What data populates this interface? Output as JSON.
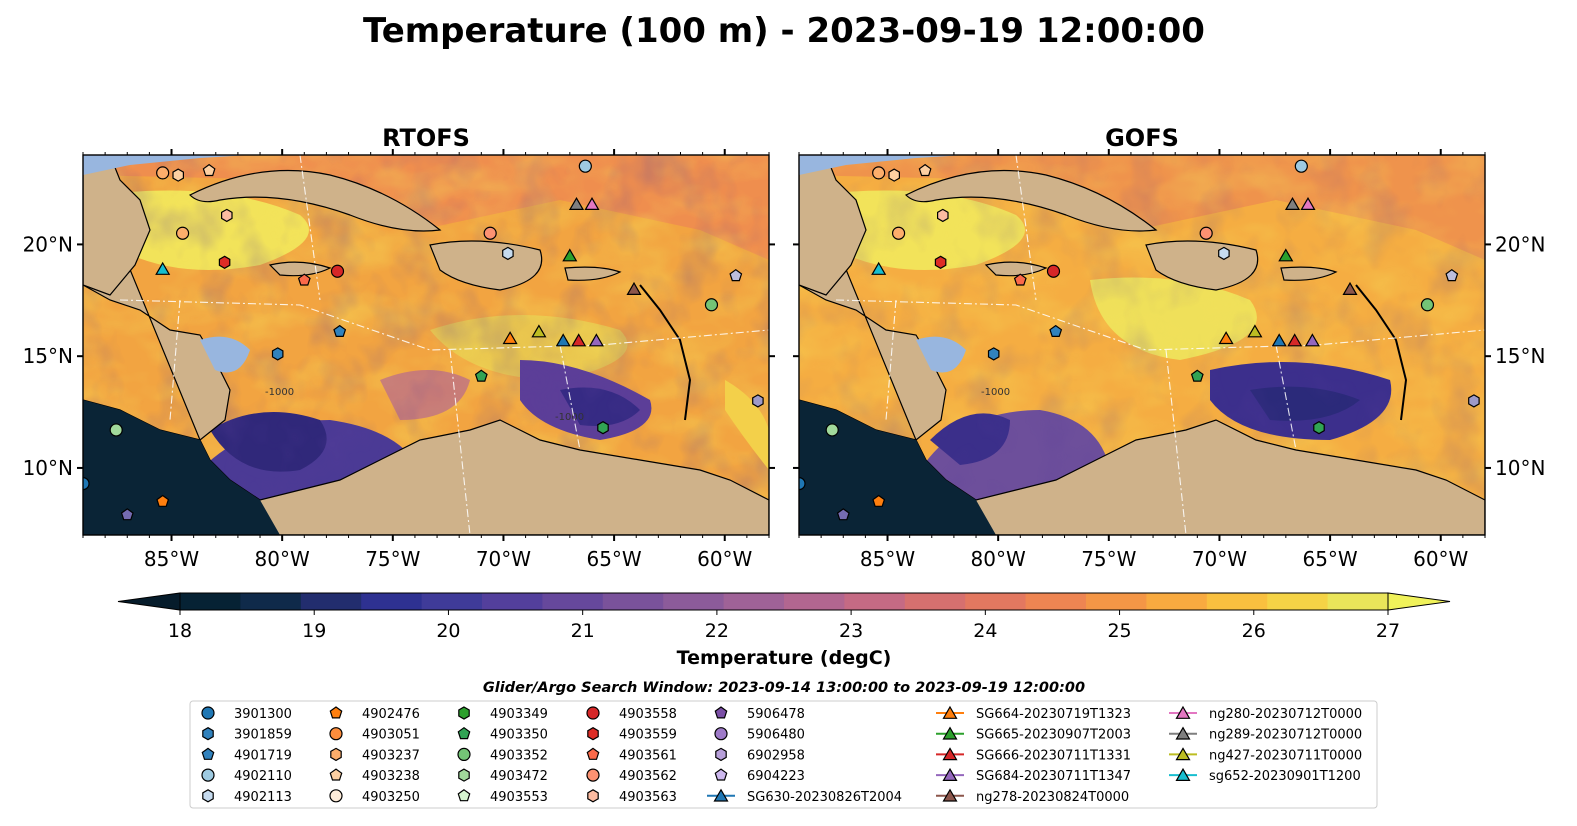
{
  "figure": {
    "suptitle": "Temperature (100 m) - 2023-09-19 12:00:00",
    "search_window": "Glider/Argo Search Window: 2023-09-14 13:00:00 to 2023-09-19 12:00:00"
  },
  "panels": [
    {
      "title": "RTOFS"
    },
    {
      "title": "GOFS"
    }
  ],
  "map_axes": {
    "lon_ticks": [
      "85°W",
      "80°W",
      "75°W",
      "70°W",
      "65°W",
      "60°W"
    ],
    "lat_ticks": [
      "20°N",
      "15°N",
      "10°N"
    ],
    "contour_label": "-1000"
  },
  "colorbar": {
    "label": "Temperature (degC)",
    "ticks": [
      "18",
      "19",
      "20",
      "21",
      "22",
      "23",
      "24",
      "25",
      "26",
      "27"
    ],
    "min": 18,
    "max": 27,
    "colors": [
      "#062234",
      "#0f2a4a",
      "#222d6e",
      "#2e3191",
      "#3f3b99",
      "#533f9c",
      "#66489c",
      "#7a529b",
      "#8c5b9a",
      "#9f6297",
      "#b26690",
      "#c56a84",
      "#d6706f",
      "#e37860",
      "#ee8552",
      "#f49646",
      "#f8aa40",
      "#f9c03f",
      "#f5d346",
      "#eae55a"
    ]
  },
  "chart_data": {
    "type": "heatmap",
    "variable": "Temperature (degC)",
    "depth": "100 m",
    "time": "2023-09-19 12:00:00",
    "panels": [
      "RTOFS",
      "GOFS"
    ],
    "lon_range": [
      -89,
      -58
    ],
    "lat_range": [
      7,
      24
    ],
    "colorbar_range": [
      18,
      27
    ],
    "markers": [
      {
        "id": "3901300",
        "lon": -89,
        "lat": 9.3,
        "shape": "circle",
        "color": "#1f77b4",
        "edge": "#000000"
      },
      {
        "id": "4902110",
        "lon": -66.3,
        "lat": 23.5,
        "shape": "circle",
        "color": "#9ecae1",
        "edge": "#000000"
      },
      {
        "id": "4902476",
        "lon": -85.4,
        "lat": 8.5,
        "shape": "pentagon",
        "color": "#ff7f0e",
        "edge": "#000000"
      },
      {
        "id": "4903051",
        "lon": -85.4,
        "lat": 23.2,
        "shape": "circle",
        "color": "#fdae6b",
        "edge": "#000000"
      },
      {
        "id": "4903237",
        "lon": -84.7,
        "lat": 23.1,
        "shape": "hexagon",
        "color": "#fdd0a2",
        "edge": "#000000"
      },
      {
        "id": "4903238",
        "lon": -83.3,
        "lat": 23.3,
        "shape": "pentagon",
        "color": "#fdd0a2",
        "edge": "#000000"
      },
      {
        "id": "4903250",
        "lon": -84.5,
        "lat": 20.5,
        "shape": "circle",
        "color": "#fdae6b",
        "edge": "#000000"
      },
      {
        "id": "4903349",
        "lon": -71.0,
        "lat": 14.1,
        "shape": "pentagon",
        "color": "#31a354",
        "edge": "#000000"
      },
      {
        "id": "4903350",
        "lon": -65.5,
        "lat": 11.8,
        "shape": "hexagon",
        "color": "#31a354",
        "edge": "#000000"
      },
      {
        "id": "4903352",
        "lon": -60.6,
        "lat": 17.3,
        "shape": "circle",
        "color": "#74c476",
        "edge": "#000000"
      },
      {
        "id": "4903472",
        "lon": -87.5,
        "lat": 11.7,
        "shape": "circle",
        "color": "#a1d99b",
        "edge": "#000000"
      },
      {
        "id": "4903558",
        "lon": -77.5,
        "lat": 18.8,
        "shape": "circle",
        "color": "#d62728",
        "edge": "#000000"
      },
      {
        "id": "4903559",
        "lon": -82.6,
        "lat": 19.2,
        "shape": "hexagon",
        "color": "#de2d26",
        "edge": "#000000"
      },
      {
        "id": "4903561",
        "lon": -79.0,
        "lat": 18.4,
        "shape": "pentagon",
        "color": "#fb6a4a",
        "edge": "#000000"
      },
      {
        "id": "4903562",
        "lon": -70.6,
        "lat": 20.5,
        "shape": "circle",
        "color": "#fc9272",
        "edge": "#000000"
      },
      {
        "id": "4903563",
        "lon": -82.5,
        "lat": 21.3,
        "shape": "hexagon",
        "color": "#fcbba1",
        "edge": "#000000"
      },
      {
        "id": "4901719",
        "lon": -77.4,
        "lat": 16.1,
        "shape": "pentagon",
        "color": "#3182bd",
        "edge": "#000000"
      },
      {
        "id": "3901859",
        "lon": -80.2,
        "lat": 15.1,
        "shape": "hexagon",
        "color": "#3182bd",
        "edge": "#000000"
      },
      {
        "id": "4902113",
        "lon": -69.8,
        "lat": 19.6,
        "shape": "hexagon",
        "color": "#c6dbef",
        "edge": "#000000"
      },
      {
        "id": "5906478",
        "lon": -87.0,
        "lat": 7.9,
        "shape": "pentagon",
        "color": "#756bb1",
        "edge": "#000000"
      },
      {
        "id": "5906480",
        "lon": -58.5,
        "lat": 13.0,
        "shape": "hexagon",
        "color": "#9e9ac8",
        "edge": "#000000"
      },
      {
        "id": "6904223",
        "lon": -59.5,
        "lat": 18.6,
        "shape": "pentagon",
        "color": "#bcbddc",
        "edge": "#000000"
      },
      {
        "id": "SG630-20230826T2004",
        "lon": -67.3,
        "lat": 15.7,
        "shape": "triangle",
        "color": "#1f77b4",
        "edge": "#000000"
      },
      {
        "id": "SG664-20230719T1323",
        "lon": -69.7,
        "lat": 15.8,
        "shape": "triangle",
        "color": "#ff7f0e",
        "edge": "#000000"
      },
      {
        "id": "SG665-20230907T2003",
        "lon": -67.0,
        "lat": 19.5,
        "shape": "triangle",
        "color": "#2ca02c",
        "edge": "#000000"
      },
      {
        "id": "SG666-20230711T1331",
        "lon": -66.6,
        "lat": 15.7,
        "shape": "triangle",
        "color": "#d62728",
        "edge": "#000000"
      },
      {
        "id": "SG684-20230711T1347",
        "lon": -65.8,
        "lat": 15.7,
        "shape": "triangle",
        "color": "#9467bd",
        "edge": "#000000"
      },
      {
        "id": "ng278-20230824T0000",
        "lon": -64.1,
        "lat": 18.0,
        "shape": "triangle",
        "color": "#8c564b",
        "edge": "#000000"
      },
      {
        "id": "ng280-20230712T0000",
        "lon": -66.0,
        "lat": 21.8,
        "shape": "triangle",
        "color": "#e377c2",
        "edge": "#000000"
      },
      {
        "id": "ng289-20230712T0000",
        "lon": -66.7,
        "lat": 21.8,
        "shape": "triangle",
        "color": "#7f7f7f",
        "edge": "#000000"
      },
      {
        "id": "ng427-20230711T0000",
        "lon": -68.4,
        "lat": 16.1,
        "shape": "triangle",
        "color": "#bcbd22",
        "edge": "#000000"
      },
      {
        "id": "sg652-20230901T1200",
        "lon": -85.4,
        "lat": 18.9,
        "shape": "triangle",
        "color": "#17becf",
        "edge": "#000000"
      }
    ]
  },
  "legend": {
    "columns": [
      [
        {
          "label": "3901300",
          "shape": "circle",
          "color": "#1f77b4"
        },
        {
          "label": "3901859",
          "shape": "hexagon",
          "color": "#3182bd"
        },
        {
          "label": "4901719",
          "shape": "pentagon",
          "color": "#3182bd"
        },
        {
          "label": "4902110",
          "shape": "circle",
          "color": "#9ecae1"
        },
        {
          "label": "4902113",
          "shape": "hexagon",
          "color": "#c6dbef"
        }
      ],
      [
        {
          "label": "4902476",
          "shape": "pentagon",
          "color": "#ff7f0e"
        },
        {
          "label": "4903051",
          "shape": "circle",
          "color": "#fd8d3c"
        },
        {
          "label": "4903237",
          "shape": "hexagon",
          "color": "#fdae6b"
        },
        {
          "label": "4903238",
          "shape": "pentagon",
          "color": "#fdd0a2"
        },
        {
          "label": "4903250",
          "shape": "circle",
          "color": "#feecd9"
        }
      ],
      [
        {
          "label": "4903349",
          "shape": "hexagon",
          "color": "#2ca02c"
        },
        {
          "label": "4903350",
          "shape": "pentagon",
          "color": "#31a354"
        },
        {
          "label": "4903352",
          "shape": "circle",
          "color": "#74c476"
        },
        {
          "label": "4903472",
          "shape": "hexagon",
          "color": "#a1d99b"
        },
        {
          "label": "4903553",
          "shape": "pentagon",
          "color": "#d7f5d0"
        }
      ],
      [
        {
          "label": "4903558",
          "shape": "circle",
          "color": "#d62728"
        },
        {
          "label": "4903559",
          "shape": "hexagon",
          "color": "#de2d26"
        },
        {
          "label": "4903561",
          "shape": "pentagon",
          "color": "#fb6a4a"
        },
        {
          "label": "4903562",
          "shape": "circle",
          "color": "#fc9272"
        },
        {
          "label": "4903563",
          "shape": "hexagon",
          "color": "#fcbba1"
        }
      ],
      [
        {
          "label": "5906478",
          "shape": "pentagon",
          "color": "#7b4fa6"
        },
        {
          "label": "5906480",
          "shape": "circle",
          "color": "#9e7ac8"
        },
        {
          "label": "6902958",
          "shape": "hexagon",
          "color": "#b79fd9"
        },
        {
          "label": "6904223",
          "shape": "pentagon",
          "color": "#cdb8ee"
        },
        {
          "label": "SG630-20230826T2004",
          "shape": "triangle-line",
          "color": "#1f77b4"
        }
      ],
      [
        {
          "label": "SG664-20230719T1323",
          "shape": "triangle-line",
          "color": "#ff7f0e"
        },
        {
          "label": "SG665-20230907T2003",
          "shape": "triangle-line",
          "color": "#2ca02c"
        },
        {
          "label": "SG666-20230711T1331",
          "shape": "triangle-line",
          "color": "#d62728"
        },
        {
          "label": "SG684-20230711T1347",
          "shape": "triangle-line",
          "color": "#9467bd"
        },
        {
          "label": "ng278-20230824T0000",
          "shape": "triangle-line",
          "color": "#8c564b"
        }
      ],
      [
        {
          "label": "ng280-20230712T0000",
          "shape": "triangle-line",
          "color": "#e377c2"
        },
        {
          "label": "ng289-20230712T0000",
          "shape": "triangle-line",
          "color": "#7f7f7f"
        },
        {
          "label": "ng427-20230711T0000",
          "shape": "triangle-line",
          "color": "#bcbd22"
        },
        {
          "label": "sg652-20230901T1200",
          "shape": "triangle-line",
          "color": "#17becf"
        }
      ]
    ]
  }
}
